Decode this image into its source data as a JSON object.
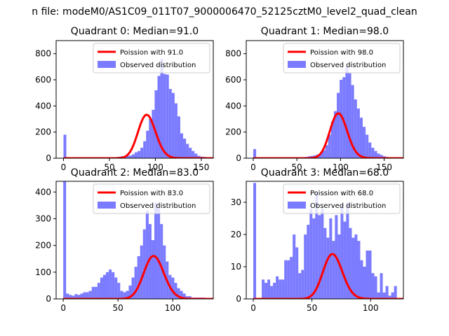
{
  "suptitle": "n file: modeM0/AS1C09_011T07_9000006470_52125cztM0_level2_quad_clean",
  "colors": {
    "hist": "#7b7bff",
    "poisson": "#ff0000",
    "axis": "#000000",
    "legend_border": "#cccccc"
  },
  "chart_data": [
    {
      "type": "bar",
      "title": "Quadrant 0: Median=91.0",
      "xlim": [
        -8,
        163
      ],
      "ylim": [
        0,
        900
      ],
      "xticks": [
        0,
        50,
        100,
        150
      ],
      "yticks": [
        0,
        200,
        400,
        600,
        800
      ],
      "bin_start": 0,
      "bin_width": 3.1,
      "values": [
        180,
        5,
        5,
        5,
        5,
        5,
        5,
        5,
        5,
        5,
        5,
        5,
        5,
        5,
        5,
        5,
        5,
        5,
        8,
        10,
        15,
        15,
        20,
        20,
        30,
        45,
        55,
        80,
        130,
        210,
        300,
        370,
        520,
        630,
        760,
        645,
        640,
        530,
        500,
        420,
        320,
        190,
        150,
        110,
        80,
        55,
        35,
        18,
        12,
        10,
        8
      ],
      "poisson": {
        "label": "Poission with 91.0",
        "mean": 91.0,
        "scale": 7950
      },
      "legend": [
        "Poission with 91.0",
        "Observed distribution"
      ]
    },
    {
      "type": "bar",
      "title": "Quadrant 1: Median=98.0",
      "xlim": [
        -8,
        172
      ],
      "ylim": [
        0,
        900
      ],
      "xticks": [
        0,
        50,
        100,
        150
      ],
      "yticks": [
        0,
        200,
        400,
        600,
        800
      ],
      "bin_start": 0,
      "bin_width": 3.3,
      "values": [
        70,
        5,
        5,
        5,
        5,
        5,
        5,
        5,
        5,
        5,
        5,
        5,
        5,
        5,
        5,
        5,
        5,
        8,
        10,
        15,
        18,
        22,
        30,
        40,
        60,
        100,
        180,
        280,
        360,
        500,
        600,
        620,
        700,
        650,
        560,
        450,
        380,
        310,
        240,
        180,
        120,
        80,
        55,
        35,
        25,
        15,
        10,
        8,
        5
      ],
      "poisson": {
        "label": "Poission with 98.0",
        "mean": 98.0,
        "scale": 8520
      },
      "legend": [
        "Poission with 98.0",
        "Observed distribution"
      ]
    },
    {
      "type": "bar",
      "title": "Quadrant 2: Median=83.0",
      "xlim": [
        -6.5,
        137
      ],
      "ylim": [
        0,
        440
      ],
      "xticks": [
        0,
        50,
        100
      ],
      "yticks": [
        0,
        100,
        200,
        300,
        400
      ],
      "bin_start": 0,
      "bin_width": 2.6,
      "values": [
        440,
        20,
        15,
        12,
        18,
        15,
        20,
        25,
        25,
        30,
        45,
        45,
        60,
        80,
        90,
        100,
        110,
        100,
        80,
        60,
        30,
        25,
        30,
        50,
        80,
        120,
        160,
        200,
        260,
        330,
        280,
        220,
        360,
        340,
        280,
        200,
        140,
        90,
        80,
        60,
        40,
        30,
        20,
        10,
        10,
        5,
        5,
        5,
        5,
        5
      ],
      "poisson": {
        "label": "Poission with 83.0",
        "mean": 83.0,
        "scale": 3670
      },
      "legend": [
        "Poission with 83.0",
        "Observed distribution"
      ]
    },
    {
      "type": "bar",
      "title": "Quadrant 3: Median=68.0",
      "xlim": [
        -6,
        128
      ],
      "ylim": [
        0,
        36.5
      ],
      "xticks": [
        0,
        50,
        100
      ],
      "yticks": [
        0,
        10,
        20,
        30
      ],
      "bin_start": 0,
      "bin_width": 2.4,
      "values": [
        36,
        0,
        0,
        6,
        5,
        6,
        4,
        5,
        7,
        6,
        6,
        12,
        12,
        13,
        20,
        16,
        8,
        9,
        20,
        23,
        28,
        25,
        33,
        26,
        28,
        22,
        19,
        25,
        18,
        26,
        20,
        29,
        24,
        30,
        22,
        19,
        20,
        18,
        12,
        10,
        15,
        15,
        8,
        7,
        2,
        8,
        2,
        4,
        1,
        2,
        4
      ],
      "poisson": {
        "label": "Poission with 68.0",
        "mean": 68.0,
        "scale": 288
      },
      "legend": [
        "Poission with 68.0",
        "Observed distribution"
      ]
    }
  ]
}
